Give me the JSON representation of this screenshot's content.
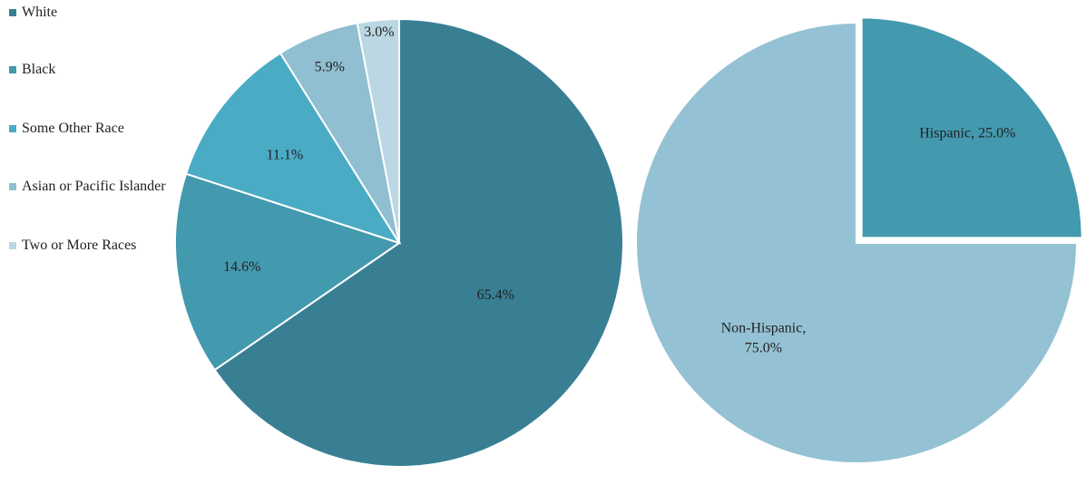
{
  "chart_data": [
    {
      "type": "pie",
      "categories": [
        "White",
        "Black",
        "Some Other Race",
        "Asian or Pacific Islander",
        "Two or More Races"
      ],
      "values": [
        65.4,
        14.6,
        11.1,
        5.9,
        3.0
      ],
      "data_labels": [
        "65.4%",
        "14.6%",
        "11.1%",
        "5.9%",
        "3.0%"
      ],
      "colors": [
        "#387f94",
        "#4399ae",
        "#4aabc4",
        "#8fbfd1",
        "#bbd7e3"
      ],
      "legend": "left",
      "title": ""
    },
    {
      "type": "pie",
      "categories": [
        "Hispanic",
        "Non-Hispanic"
      ],
      "values": [
        25.0,
        75.0
      ],
      "data_labels": [
        "Hispanic, 25.0%",
        "Non-Hispanic, 75.0%"
      ],
      "colors": [
        "#4399ae",
        "#94c2d4"
      ],
      "exploded": [
        "Hispanic"
      ],
      "legend": "none",
      "title": ""
    }
  ]
}
